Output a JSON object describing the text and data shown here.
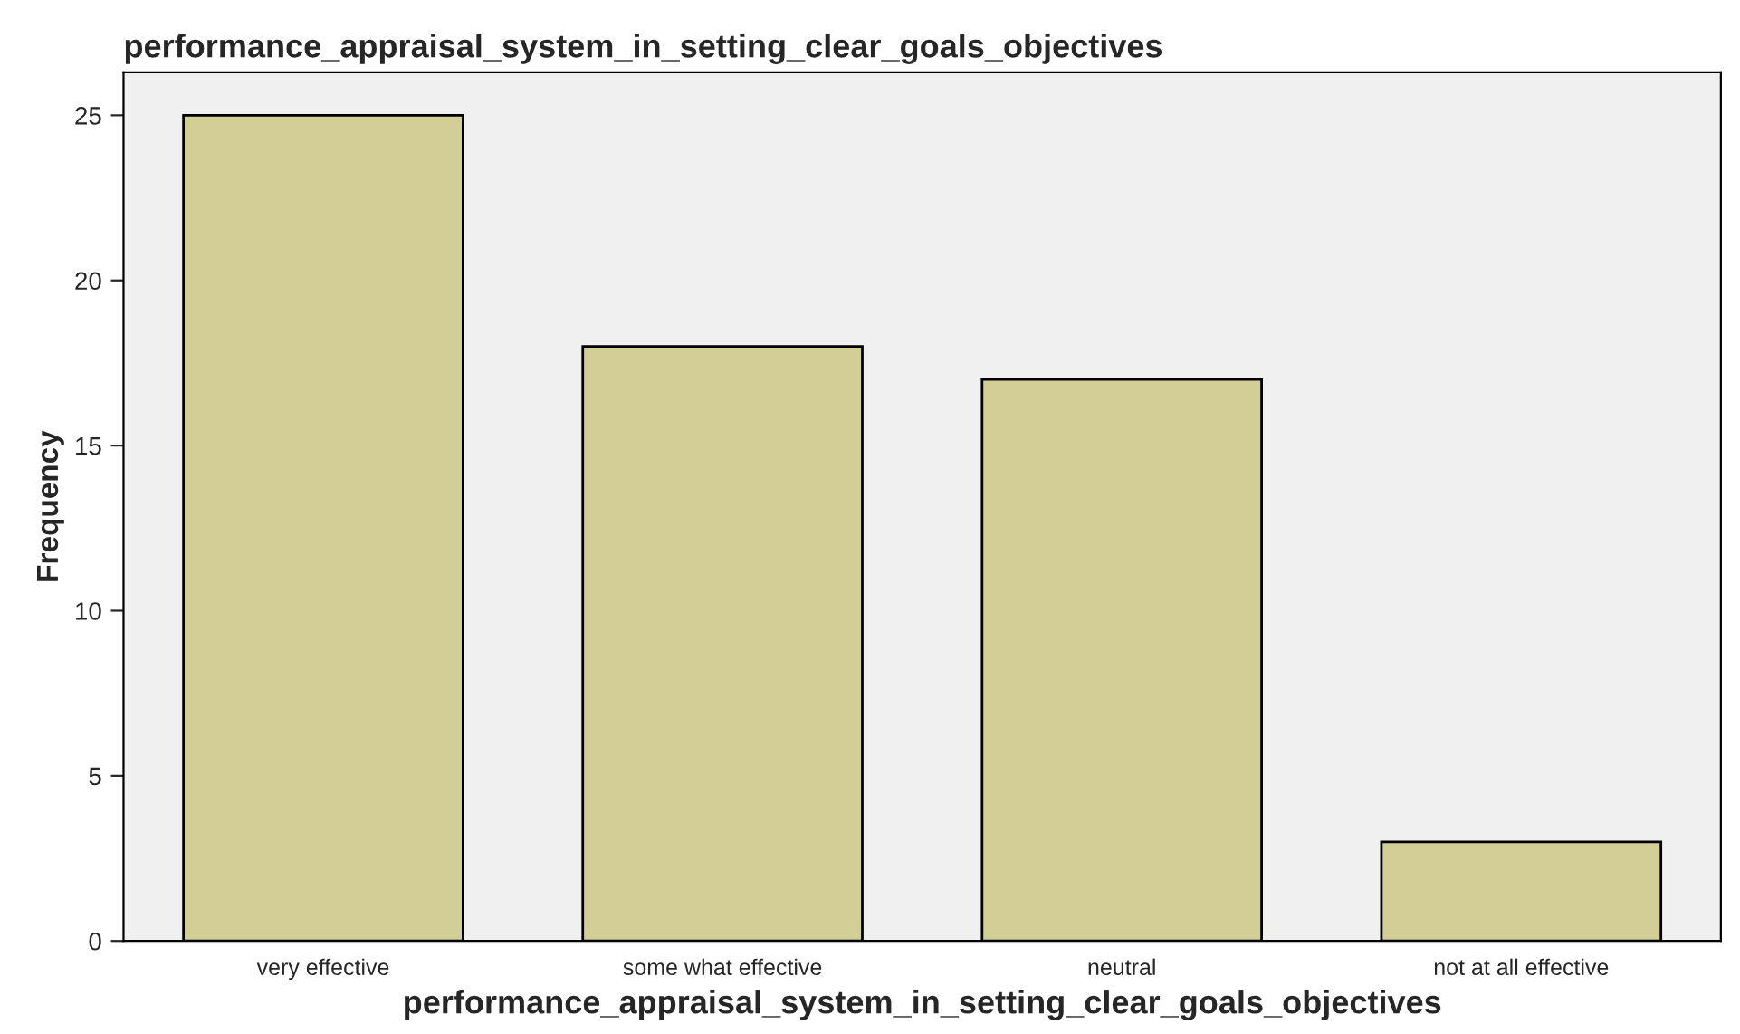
{
  "chart_data": {
    "type": "bar",
    "title": "performance_appraisal_system_in_setting_clear_goals_objectives",
    "xlabel": "performance_appraisal_system_in_setting_clear_goals_objectives",
    "ylabel": "Frequency",
    "categories": [
      "very effective",
      "some what effective",
      "neutral",
      "not at all effective"
    ],
    "values": [
      25,
      18,
      17,
      3
    ],
    "color": "#d3cd96",
    "ylim": [
      0,
      26.3
    ],
    "yticks": [
      0,
      5,
      10,
      15,
      20,
      25
    ],
    "grid": false
  }
}
